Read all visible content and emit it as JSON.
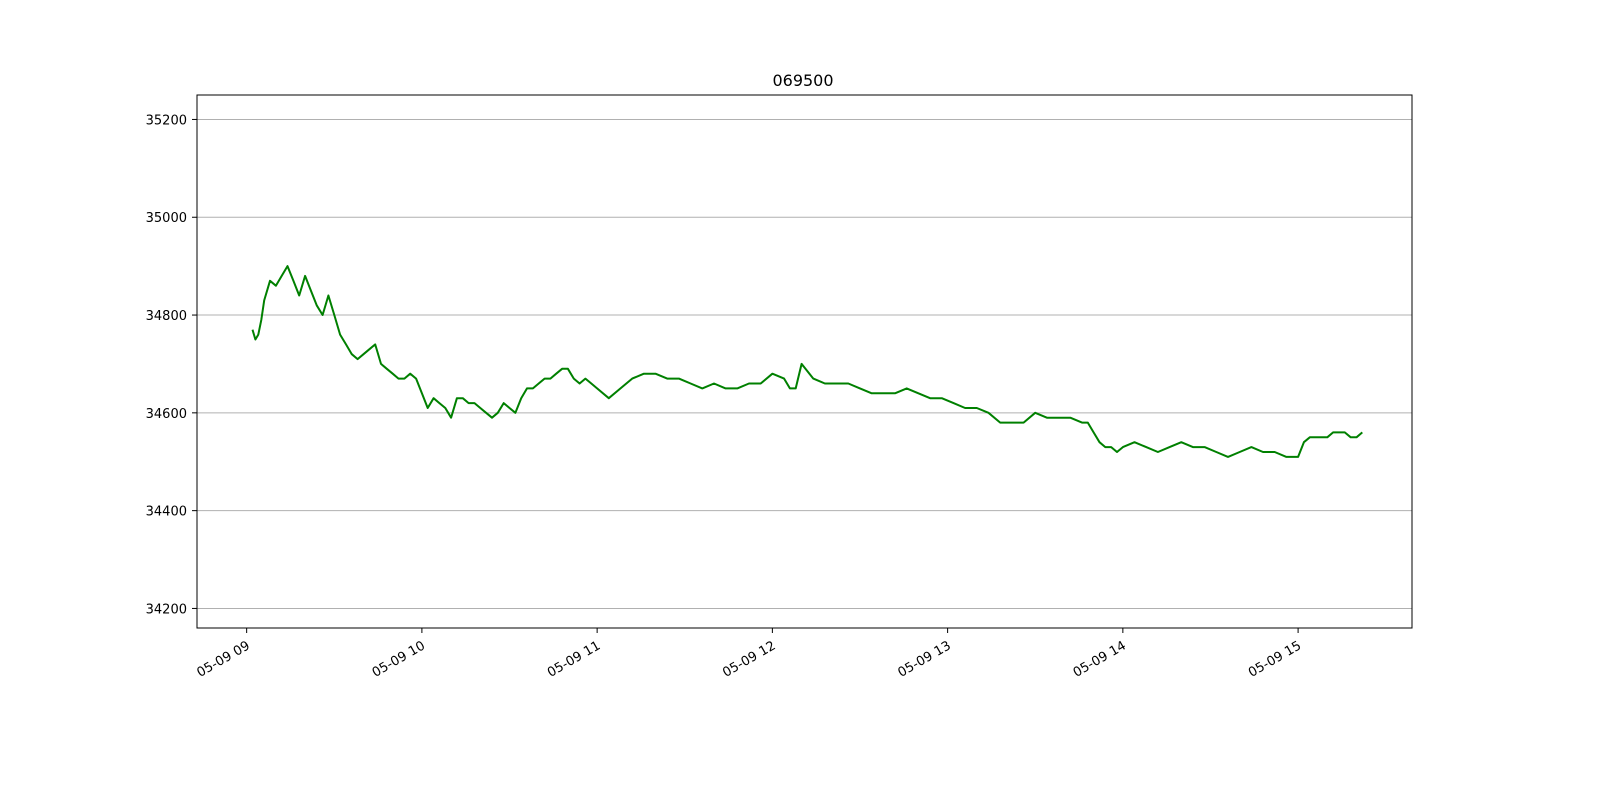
{
  "chart_data": {
    "type": "line",
    "title": "069500",
    "xlabel": "",
    "ylabel": "",
    "x_tick_labels": [
      "05-09 09",
      "05-09 10",
      "05-09 11",
      "05-09 12",
      "05-09 13",
      "05-09 14",
      "05-09 15"
    ],
    "y_ticks": [
      34200,
      34400,
      34600,
      34800,
      35000,
      35200
    ],
    "xlim": [
      "05-09 08:43",
      "05-09 15:39"
    ],
    "ylim": [
      34160,
      35250
    ],
    "grid": "horizontal",
    "series": [
      {
        "color": "#008000",
        "x": [
          "09:02",
          "09:03",
          "09:04",
          "09:05",
          "09:06",
          "09:08",
          "09:10",
          "09:12",
          "09:14",
          "09:16",
          "09:18",
          "09:20",
          "09:22",
          "09:24",
          "09:26",
          "09:28",
          "09:30",
          "09:32",
          "09:34",
          "09:36",
          "09:38",
          "09:40",
          "09:42",
          "09:44",
          "09:46",
          "09:48",
          "09:50",
          "09:52",
          "09:54",
          "09:56",
          "09:58",
          "10:00",
          "10:02",
          "10:04",
          "10:06",
          "10:08",
          "10:10",
          "10:12",
          "10:14",
          "10:16",
          "10:18",
          "10:20",
          "10:22",
          "10:24",
          "10:26",
          "10:28",
          "10:30",
          "10:32",
          "10:34",
          "10:36",
          "10:38",
          "10:40",
          "10:42",
          "10:44",
          "10:46",
          "10:48",
          "10:50",
          "10:52",
          "10:54",
          "10:56",
          "10:58",
          "11:00",
          "11:04",
          "11:08",
          "11:12",
          "11:16",
          "11:20",
          "11:24",
          "11:28",
          "11:32",
          "11:36",
          "11:40",
          "11:44",
          "11:48",
          "11:52",
          "11:56",
          "12:00",
          "12:04",
          "12:06",
          "12:08",
          "12:10",
          "12:14",
          "12:18",
          "12:22",
          "12:26",
          "12:30",
          "12:34",
          "12:38",
          "12:42",
          "12:46",
          "12:50",
          "12:54",
          "12:58",
          "13:02",
          "13:06",
          "13:10",
          "13:14",
          "13:18",
          "13:22",
          "13:26",
          "13:30",
          "13:34",
          "13:38",
          "13:42",
          "13:46",
          "13:48",
          "13:50",
          "13:52",
          "13:54",
          "13:56",
          "13:58",
          "14:00",
          "14:04",
          "14:08",
          "14:12",
          "14:16",
          "14:20",
          "14:24",
          "14:28",
          "14:32",
          "14:36",
          "14:40",
          "14:44",
          "14:48",
          "14:52",
          "14:56",
          "15:00",
          "15:02",
          "15:04",
          "15:06",
          "15:08",
          "15:10",
          "15:12",
          "15:14",
          "15:16",
          "15:18",
          "15:20",
          "15:22"
        ],
        "y": [
          34770,
          34750,
          34760,
          34790,
          34830,
          34870,
          34860,
          34880,
          34900,
          34870,
          34840,
          34880,
          34850,
          34820,
          34800,
          34840,
          34800,
          34760,
          34740,
          34720,
          34710,
          34720,
          34730,
          34740,
          34700,
          34690,
          34680,
          34670,
          34670,
          34680,
          34670,
          34640,
          34610,
          34630,
          34620,
          34610,
          34590,
          34630,
          34630,
          34620,
          34620,
          34610,
          34600,
          34590,
          34600,
          34620,
          34610,
          34600,
          34630,
          34650,
          34650,
          34660,
          34670,
          34670,
          34680,
          34690,
          34690,
          34670,
          34660,
          34670,
          34660,
          34650,
          34630,
          34650,
          34670,
          34680,
          34680,
          34670,
          34670,
          34660,
          34650,
          34660,
          34650,
          34650,
          34660,
          34660,
          34680,
          34670,
          34650,
          34650,
          34700,
          34670,
          34660,
          34660,
          34660,
          34650,
          34640,
          34640,
          34640,
          34650,
          34640,
          34630,
          34630,
          34620,
          34610,
          34610,
          34600,
          34580,
          34580,
          34580,
          34600,
          34590,
          34590,
          34590,
          34580,
          34580,
          34560,
          34540,
          34530,
          34530,
          34520,
          34530,
          34540,
          34530,
          34520,
          34530,
          34540,
          34530,
          34530,
          34520,
          34510,
          34520,
          34530,
          34520,
          34520,
          34510,
          34510,
          34540,
          34550,
          34550,
          34550,
          34550,
          34560,
          34560,
          34560,
          34550,
          34550,
          34560
        ]
      }
    ]
  }
}
